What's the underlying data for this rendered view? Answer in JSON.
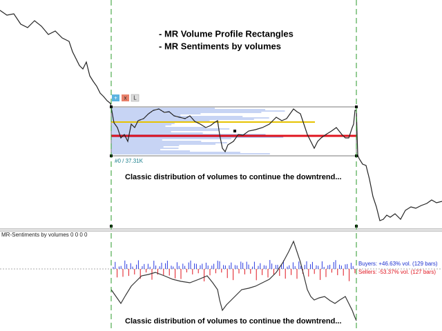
{
  "header": {
    "lines": [
      "- MR Volume Profile Rectangles",
      "- MR Sentiments by volumes"
    ]
  },
  "buttons": [
    "+",
    "x",
    "L"
  ],
  "rectangle_label": "#0 / 37.31K",
  "main_caption": "Classic distribution of volumes to continue the downtrend...",
  "indicator": {
    "title": "MR-Sentiments by volumes 0 0 0 0",
    "buyers": "Buyers: +46.63% vol. (129 bars)",
    "sellers": "Sellers: -53.37% vol. (127 bars)",
    "caption": "Classic distribution of volumes to continue the downtrend..."
  }
}
